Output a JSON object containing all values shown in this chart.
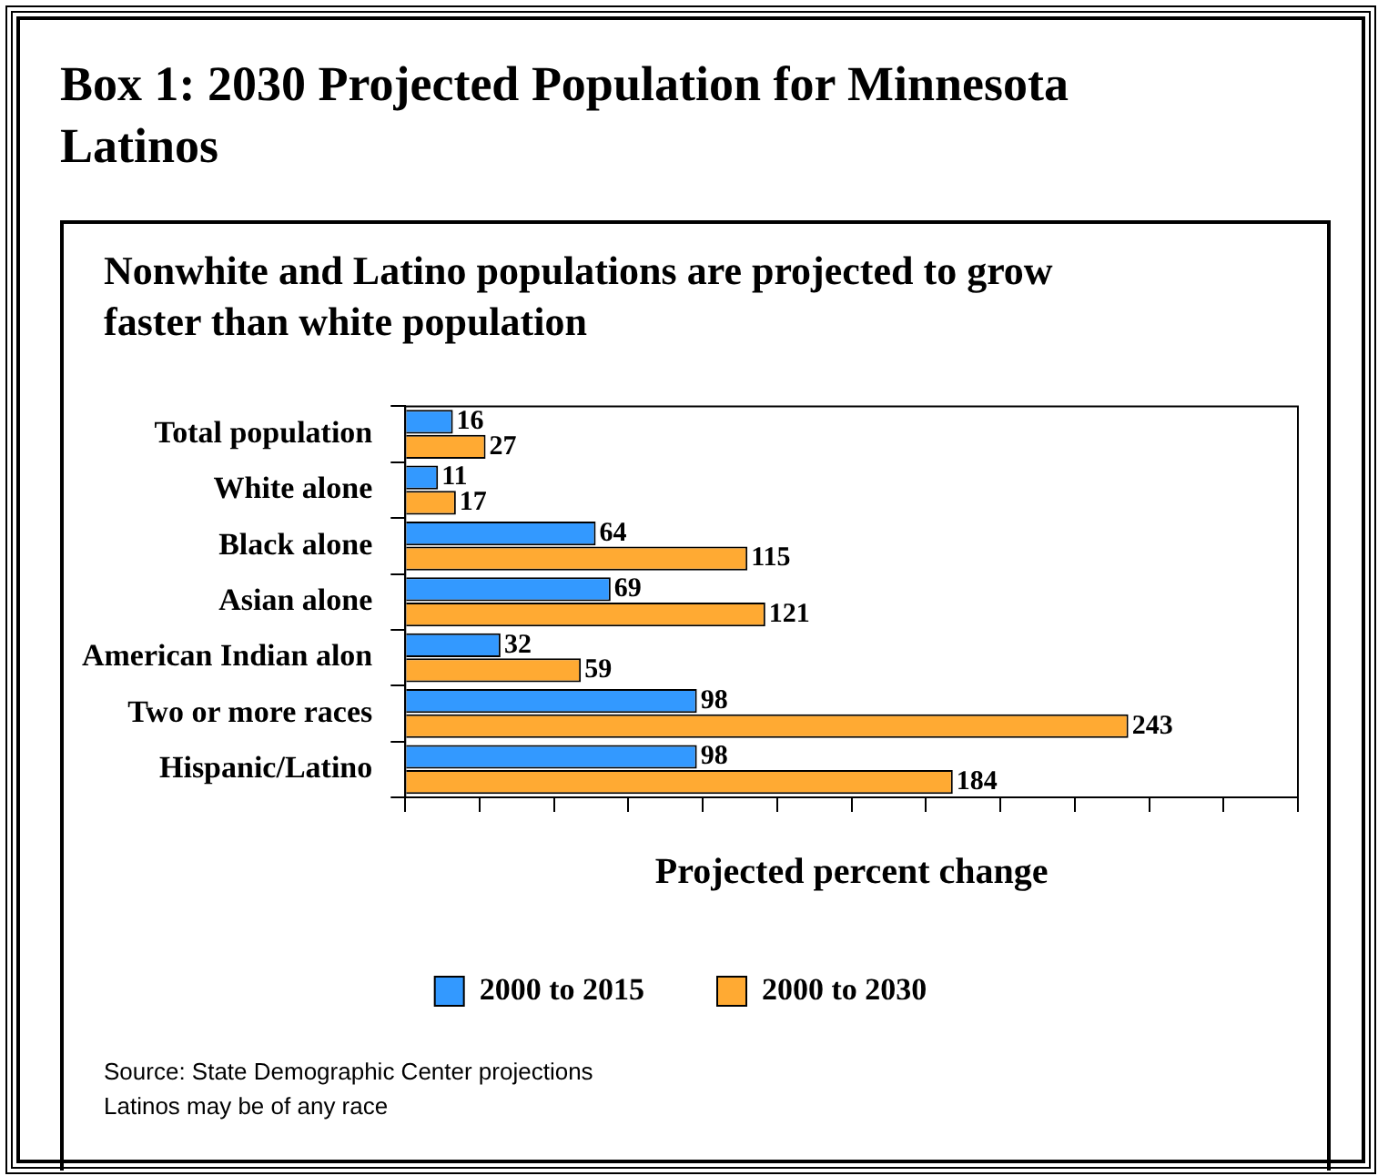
{
  "chart_data": {
    "type": "bar",
    "orientation": "horizontal",
    "title": "Box 1: 2030 Projected Population for Minnesota Latinos",
    "subtitle": "Nonwhite and Latino populations are projected to grow faster than white population",
    "xlabel": "Projected percent change",
    "categories": [
      "Total population",
      "White alone",
      "Black alone",
      "Asian alone",
      "American Indian alon",
      "Two or more races",
      "Hispanic/Latino"
    ],
    "series": [
      {
        "name": "2000 to 2015",
        "color": "#3399ff",
        "values": [
          16,
          11,
          64,
          69,
          32,
          98,
          98
        ]
      },
      {
        "name": "2000 to 2030",
        "color": "#ffaa33",
        "values": [
          27,
          17,
          115,
          121,
          59,
          243,
          184
        ]
      }
    ],
    "xlim": [
      0,
      300
    ],
    "xticks": [
      {
        "value": 0,
        "label": null
      },
      {
        "value": 25,
        "label": null
      },
      {
        "value": 50,
        "label": null
      },
      {
        "value": 75,
        "label": null
      },
      {
        "value": 100,
        "label": null
      },
      {
        "value": 125,
        "label": null
      },
      {
        "value": 150,
        "label": null
      },
      {
        "value": 175,
        "label": null
      },
      {
        "value": 200,
        "label": null
      },
      {
        "value": 225,
        "label": null
      },
      {
        "value": 250,
        "label": null
      },
      {
        "value": 275,
        "label": null
      },
      {
        "value": 300,
        "label": null
      }
    ],
    "tick_labels": "y",
    "data_labels": true,
    "legend": "bottom",
    "annotations": [
      "Source: State Demographic Center projections",
      "Latinos may be of any race"
    ]
  }
}
